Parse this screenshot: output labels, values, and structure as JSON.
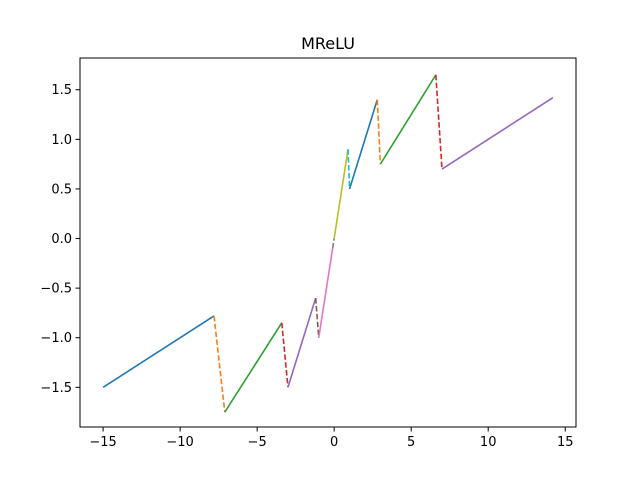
{
  "chart_data": {
    "type": "line",
    "title": "MReLU",
    "xlabel": "",
    "ylabel": "",
    "xlim": [
      -16.5,
      15.7
    ],
    "ylim": [
      -1.9,
      1.82
    ],
    "grid": false,
    "legend": "none",
    "x_ticks": [
      -15,
      -10,
      -5,
      0,
      5,
      10,
      15
    ],
    "x_tick_labels": [
      "−15",
      "−10",
      "−5",
      "0",
      "5",
      "10",
      "15"
    ],
    "y_ticks": [
      -1.5,
      -1.0,
      -0.5,
      0.0,
      0.5,
      1.0,
      1.5
    ],
    "y_tick_labels": [
      "−1.5",
      "−1.0",
      "−0.5",
      "0.0",
      "0.5",
      "1.0",
      "1.5"
    ],
    "series": [
      {
        "color": "#1f77b4",
        "dash": false,
        "points": [
          [
            -15.0,
            -1.5
          ],
          [
            -7.8,
            -0.78
          ]
        ]
      },
      {
        "color": "#ff7f0e",
        "dash": true,
        "points": [
          [
            -7.8,
            -0.78
          ],
          [
            -7.1,
            -1.75
          ]
        ]
      },
      {
        "color": "#2ca02c",
        "dash": false,
        "points": [
          [
            -7.1,
            -1.75
          ],
          [
            -3.4,
            -0.85
          ]
        ]
      },
      {
        "color": "#d62728",
        "dash": true,
        "points": [
          [
            -3.4,
            -0.85
          ],
          [
            -3.0,
            -1.5
          ]
        ]
      },
      {
        "color": "#9467bd",
        "dash": false,
        "points": [
          [
            -3.0,
            -1.5
          ],
          [
            -1.2,
            -0.6
          ]
        ]
      },
      {
        "color": "#8c564b",
        "dash": true,
        "points": [
          [
            -1.2,
            -0.6
          ],
          [
            -1.0,
            -1.0
          ]
        ]
      },
      {
        "color": "#e377c2",
        "dash": false,
        "points": [
          [
            -1.0,
            -1.0
          ],
          [
            -0.1,
            -0.1
          ]
        ]
      },
      {
        "color": "#7f7f7f",
        "dash": true,
        "points": [
          [
            -0.1,
            -0.1
          ],
          [
            0.0,
            0.0
          ]
        ]
      },
      {
        "color": "#bcbd22",
        "dash": false,
        "points": [
          [
            0.0,
            0.0
          ],
          [
            0.9,
            0.9
          ]
        ]
      },
      {
        "color": "#17becf",
        "dash": true,
        "points": [
          [
            0.9,
            0.9
          ],
          [
            1.0,
            0.5
          ]
        ]
      },
      {
        "color": "#1f77b4",
        "dash": false,
        "points": [
          [
            1.0,
            0.5
          ],
          [
            2.8,
            1.4
          ]
        ]
      },
      {
        "color": "#ff7f0e",
        "dash": true,
        "points": [
          [
            2.8,
            1.4
          ],
          [
            3.0,
            0.75
          ]
        ]
      },
      {
        "color": "#2ca02c",
        "dash": false,
        "points": [
          [
            3.0,
            0.75
          ],
          [
            6.6,
            1.65
          ]
        ]
      },
      {
        "color": "#d62728",
        "dash": true,
        "points": [
          [
            6.6,
            1.65
          ],
          [
            7.0,
            0.7
          ]
        ]
      },
      {
        "color": "#9467bd",
        "dash": false,
        "points": [
          [
            7.0,
            0.7
          ],
          [
            14.2,
            1.42
          ]
        ]
      }
    ]
  }
}
